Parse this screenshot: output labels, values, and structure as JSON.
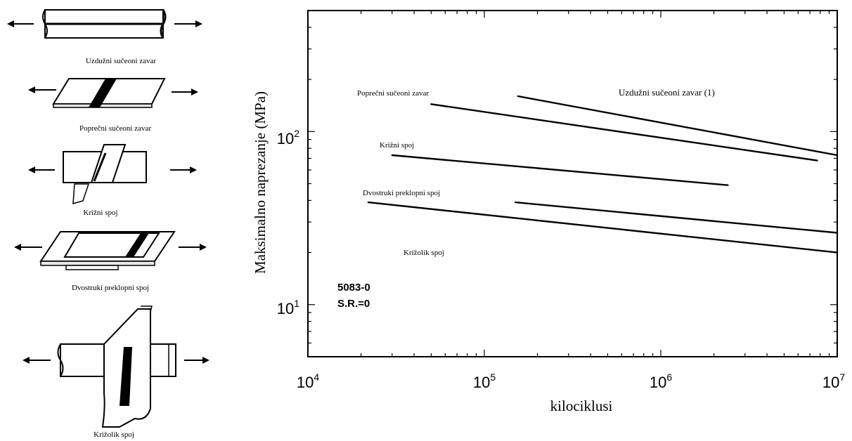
{
  "specimens": [
    {
      "id": "uzduzni",
      "caption": "Uzdužni sučeoni zavar"
    },
    {
      "id": "poprecni",
      "caption": "Poprečni sučeoni zavar"
    },
    {
      "id": "krizni",
      "caption": "Križni spoj"
    },
    {
      "id": "dvostruki",
      "caption": "Dvostruki preklopni spoj"
    },
    {
      "id": "krizolik",
      "caption": "Križolik spoj"
    }
  ],
  "chart_data": {
    "type": "line",
    "title": "",
    "xlabel": "kilociklusi",
    "ylabel": "Maksimalno naprezanje (MPa)",
    "xscale": "log",
    "yscale": "log",
    "xlim": [
      10000,
      10000000
    ],
    "ylim": [
      5,
      500
    ],
    "x_ticks": [
      {
        "value": 10000,
        "base": "10",
        "exp": "4"
      },
      {
        "value": 100000,
        "base": "10",
        "exp": "5"
      },
      {
        "value": 1000000,
        "base": "10",
        "exp": "6"
      },
      {
        "value": 10000000,
        "base": "10",
        "exp": "7"
      }
    ],
    "y_ticks": [
      {
        "value": 10,
        "base": "10",
        "exp": "1"
      },
      {
        "value": 100,
        "base": "10",
        "exp": "2"
      }
    ],
    "grid": false,
    "annotation": [
      "5083-0",
      "S.R.=0"
    ],
    "series": [
      {
        "name": "Uzdužni sučeoni zavar (1)",
        "x": [
          155000,
          10000000
        ],
        "y": [
          160,
          73
        ]
      },
      {
        "name": "Poprečni sučeoni zavar",
        "x": [
          50000,
          7700000
        ],
        "y": [
          144,
          68
        ]
      },
      {
        "name": "Križni spoj",
        "x": [
          30000,
          2400000
        ],
        "y": [
          73,
          49
        ]
      },
      {
        "name": "Dvostruki preklopni spoj",
        "x": [
          150000,
          10000000
        ],
        "y": [
          39,
          26
        ]
      },
      {
        "name": "Križolik spoj",
        "x": [
          22000,
          10000000
        ],
        "y": [
          39,
          20
        ]
      }
    ]
  }
}
